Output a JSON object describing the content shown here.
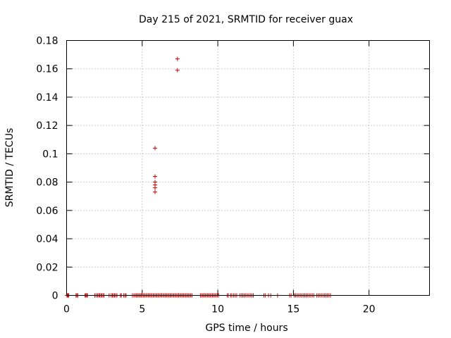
{
  "chart_data": {
    "type": "scatter",
    "title": "Day 215 of 2021, SRMTID for receiver guax",
    "xlabel": "GPS time / hours",
    "ylabel": "SRMTID / TECUs",
    "xlim": [
      0,
      24
    ],
    "ylim": [
      0,
      0.18
    ],
    "x_ticks": [
      0,
      5,
      10,
      15,
      20
    ],
    "x_tick_labels": [
      "0",
      "5",
      "10",
      "15",
      "20"
    ],
    "y_ticks": [
      0,
      0.02,
      0.04,
      0.06,
      0.08,
      0.1,
      0.12,
      0.14,
      0.16,
      0.18
    ],
    "y_tick_labels": [
      "0",
      "0.02",
      "0.04",
      "0.06",
      "0.08",
      "0.1",
      "0.12",
      "0.14",
      "0.16",
      "0.18"
    ],
    "grid": true,
    "marker": "+",
    "series_color": "#cc0000",
    "series": [
      {
        "name": "SRMTID",
        "points": [
          [
            7.33,
            0.167
          ],
          [
            7.33,
            0.159
          ],
          [
            5.85,
            0.104
          ],
          [
            5.85,
            0.084
          ],
          [
            5.85,
            0.08
          ],
          [
            5.85,
            0.078
          ],
          [
            5.85,
            0.076
          ],
          [
            5.85,
            0.073
          ],
          [
            0.02,
            0
          ],
          [
            0.06,
            0
          ],
          [
            0.1,
            0
          ],
          [
            0.14,
            0
          ],
          [
            0.62,
            0
          ],
          [
            0.68,
            0
          ],
          [
            0.74,
            0
          ],
          [
            1.22,
            0
          ],
          [
            1.27,
            0
          ],
          [
            1.33,
            0
          ],
          [
            1.38,
            0
          ],
          [
            1.86,
            0
          ],
          [
            1.95,
            0
          ],
          [
            2.05,
            0
          ],
          [
            2.12,
            0
          ],
          [
            2.19,
            0
          ],
          [
            2.26,
            0
          ],
          [
            2.33,
            0
          ],
          [
            2.41,
            0
          ],
          [
            2.48,
            0
          ],
          [
            2.81,
            0
          ],
          [
            2.95,
            0
          ],
          [
            3.03,
            0
          ],
          [
            3.1,
            0
          ],
          [
            3.17,
            0
          ],
          [
            3.25,
            0
          ],
          [
            3.33,
            0
          ],
          [
            3.56,
            0
          ],
          [
            3.62,
            0
          ],
          [
            3.78,
            0
          ],
          [
            3.87,
            0
          ],
          [
            3.94,
            0
          ],
          [
            4.35,
            0
          ],
          [
            4.45,
            0
          ],
          [
            4.54,
            0
          ],
          [
            4.62,
            0
          ],
          [
            4.7,
            0
          ],
          [
            4.78,
            0
          ],
          [
            4.86,
            0
          ],
          [
            4.93,
            0
          ],
          [
            5.01,
            0
          ],
          [
            5.09,
            0
          ],
          [
            5.17,
            0
          ],
          [
            5.25,
            0
          ],
          [
            5.33,
            0
          ],
          [
            5.41,
            0
          ],
          [
            5.49,
            0
          ],
          [
            5.57,
            0
          ],
          [
            5.65,
            0
          ],
          [
            5.73,
            0
          ],
          [
            5.81,
            0
          ],
          [
            5.89,
            0
          ],
          [
            5.97,
            0
          ],
          [
            6.05,
            0
          ],
          [
            6.13,
            0
          ],
          [
            6.21,
            0
          ],
          [
            6.29,
            0
          ],
          [
            6.37,
            0
          ],
          [
            6.45,
            0
          ],
          [
            6.53,
            0
          ],
          [
            6.61,
            0
          ],
          [
            6.69,
            0
          ],
          [
            6.77,
            0
          ],
          [
            6.85,
            0
          ],
          [
            6.93,
            0
          ],
          [
            7.01,
            0
          ],
          [
            7.09,
            0
          ],
          [
            7.17,
            0
          ],
          [
            7.25,
            0
          ],
          [
            7.33,
            0
          ],
          [
            7.41,
            0
          ],
          [
            7.49,
            0
          ],
          [
            7.57,
            0
          ],
          [
            7.65,
            0
          ],
          [
            7.73,
            0
          ],
          [
            7.81,
            0
          ],
          [
            7.89,
            0
          ],
          [
            7.97,
            0
          ],
          [
            8.05,
            0
          ],
          [
            8.13,
            0
          ],
          [
            8.21,
            0
          ],
          [
            8.29,
            0
          ],
          [
            8.85,
            0
          ],
          [
            8.93,
            0
          ],
          [
            9.01,
            0
          ],
          [
            9.09,
            0
          ],
          [
            9.17,
            0
          ],
          [
            9.25,
            0
          ],
          [
            9.33,
            0
          ],
          [
            9.41,
            0
          ],
          [
            9.49,
            0
          ],
          [
            9.57,
            0
          ],
          [
            9.65,
            0
          ],
          [
            9.73,
            0
          ],
          [
            9.81,
            0
          ],
          [
            9.89,
            0
          ],
          [
            9.97,
            0
          ],
          [
            10.05,
            0
          ],
          [
            10.62,
            0
          ],
          [
            10.7,
            0
          ],
          [
            10.85,
            0
          ],
          [
            10.93,
            0
          ],
          [
            11.05,
            0
          ],
          [
            11.15,
            0
          ],
          [
            11.25,
            0
          ],
          [
            11.45,
            0
          ],
          [
            11.55,
            0
          ],
          [
            11.65,
            0
          ],
          [
            11.75,
            0
          ],
          [
            11.85,
            0
          ],
          [
            11.95,
            0
          ],
          [
            12.05,
            0
          ],
          [
            12.15,
            0
          ],
          [
            12.25,
            0
          ],
          [
            12.35,
            0
          ],
          [
            13.05,
            0
          ],
          [
            13.15,
            0
          ],
          [
            13.35,
            0
          ],
          [
            13.5,
            0
          ],
          [
            13.95,
            0
          ],
          [
            14.75,
            0
          ],
          [
            14.85,
            0
          ],
          [
            15.05,
            0
          ],
          [
            15.15,
            0
          ],
          [
            15.25,
            0
          ],
          [
            15.35,
            0
          ],
          [
            15.45,
            0
          ],
          [
            15.55,
            0
          ],
          [
            15.65,
            0
          ],
          [
            15.75,
            0
          ],
          [
            15.85,
            0
          ],
          [
            15.95,
            0
          ],
          [
            16.05,
            0
          ],
          [
            16.15,
            0
          ],
          [
            16.25,
            0
          ],
          [
            16.35,
            0
          ],
          [
            16.55,
            0
          ],
          [
            16.65,
            0
          ],
          [
            16.75,
            0
          ],
          [
            16.85,
            0
          ],
          [
            16.95,
            0
          ],
          [
            17.05,
            0
          ],
          [
            17.15,
            0
          ],
          [
            17.25,
            0
          ],
          [
            17.35,
            0
          ],
          [
            17.45,
            0
          ]
        ]
      }
    ]
  }
}
